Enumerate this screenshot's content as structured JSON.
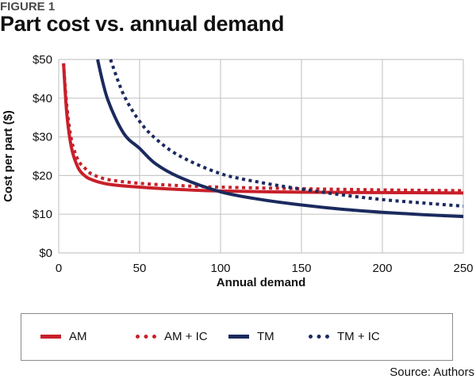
{
  "figure_label": "FIGURE 1",
  "source": "Source: Authors",
  "colors": {
    "red": "#c8202a",
    "navy": "#1b2a5e",
    "grid": "#c8c8c8"
  },
  "chart_data": {
    "type": "line",
    "title": "Part cost vs. annual demand",
    "xlabel": "Annual demand",
    "ylabel": "Cost per part  ($)",
    "xlim": [
      0,
      250
    ],
    "ylim": [
      0,
      50
    ],
    "grid": true,
    "legend_position": "bottom",
    "x_ticks": [
      0,
      50,
      100,
      150,
      200,
      250
    ],
    "x_tick_labels": [
      "0",
      "50",
      "100",
      "150",
      "200",
      "250"
    ],
    "y_ticks": [
      0,
      10,
      20,
      30,
      40,
      50
    ],
    "y_tick_labels": [
      "$0",
      "$10",
      "$20",
      "$30",
      "$40",
      "$50"
    ],
    "series": [
      {
        "name": "AM",
        "color": "#c8202a",
        "style": "solid",
        "x": [
          3,
          5,
          8,
          12,
          16,
          20,
          30,
          50,
          75,
          100,
          150,
          200,
          250
        ],
        "y": [
          49,
          36,
          27,
          22,
          20,
          19,
          17.8,
          17,
          16.4,
          16,
          15.7,
          15.6,
          15.5
        ]
      },
      {
        "name": "AM + IC",
        "color": "#c8202a",
        "style": "dotted",
        "x": [
          3,
          5,
          8,
          12,
          16,
          20,
          30,
          50,
          75,
          100,
          150,
          200,
          250
        ],
        "y": [
          49,
          38,
          29,
          24,
          22,
          20.5,
          19,
          18,
          17.4,
          17,
          16.6,
          16.3,
          16.1
        ]
      },
      {
        "name": "TM",
        "color": "#1b2a5e",
        "style": "solid",
        "x": [
          24,
          30,
          40,
          50,
          60,
          75,
          100,
          125,
          150,
          175,
          200,
          225,
          250
        ],
        "y": [
          50,
          40,
          31,
          27,
          23,
          19.5,
          15.8,
          13.8,
          12.4,
          11.3,
          10.5,
          9.9,
          9.4
        ]
      },
      {
        "name": "TM + IC",
        "color": "#1b2a5e",
        "style": "dotted",
        "x": [
          32,
          40,
          50,
          60,
          75,
          100,
          125,
          150,
          175,
          200,
          225,
          250
        ],
        "y": [
          50,
          41,
          34,
          29.5,
          25,
          20.5,
          18.2,
          16.5,
          15,
          13.8,
          12.9,
          12.1
        ]
      }
    ]
  }
}
